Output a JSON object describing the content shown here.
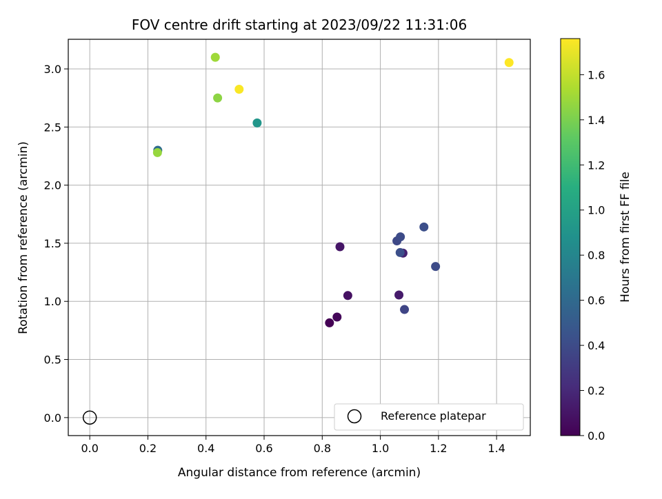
{
  "chart_data": {
    "type": "scatter",
    "title": "FOV centre drift starting at 2023/09/22 11:31:06",
    "xlabel": "Angular distance from reference (arcmin)",
    "ylabel": "Rotation from reference (arcmin)",
    "xlim": [
      -0.074,
      1.516
    ],
    "ylim": [
      -0.155,
      3.255
    ],
    "xticks": [
      0.0,
      0.2,
      0.4,
      0.6,
      0.8,
      1.0,
      1.2,
      1.4
    ],
    "xtick_labels": [
      "0.0",
      "0.2",
      "0.4",
      "0.6",
      "0.8",
      "1.0",
      "1.2",
      "1.4"
    ],
    "yticks": [
      0.0,
      0.5,
      1.0,
      1.5,
      2.0,
      2.5,
      3.0
    ],
    "ytick_labels": [
      "0.0",
      "0.5",
      "1.0",
      "1.5",
      "2.0",
      "2.5",
      "3.0"
    ],
    "grid": true,
    "colormap": "viridis",
    "colorbar": {
      "label": "Hours from first FF file",
      "range": [
        0.0,
        1.76
      ],
      "ticks": [
        0.0,
        0.2,
        0.4,
        0.6,
        0.8,
        1.0,
        1.2,
        1.4,
        1.6
      ],
      "tick_labels": [
        "0.0",
        "0.2",
        "0.4",
        "0.6",
        "0.8",
        "1.0",
        "1.2",
        "1.4",
        "1.6"
      ]
    },
    "points": [
      {
        "x": 0.825,
        "y": 0.815,
        "hours": 0.0
      },
      {
        "x": 0.851,
        "y": 0.865,
        "hours": 0.03
      },
      {
        "x": 0.888,
        "y": 1.05,
        "hours": 0.08
      },
      {
        "x": 0.861,
        "y": 1.47,
        "hours": 0.1
      },
      {
        "x": 1.064,
        "y": 1.055,
        "hours": 0.13
      },
      {
        "x": 1.078,
        "y": 1.415,
        "hours": 0.16
      },
      {
        "x": 1.083,
        "y": 0.93,
        "hours": 0.36
      },
      {
        "x": 1.057,
        "y": 1.52,
        "hours": 0.38
      },
      {
        "x": 1.069,
        "y": 1.555,
        "hours": 0.4
      },
      {
        "x": 1.068,
        "y": 1.42,
        "hours": 0.42
      },
      {
        "x": 1.19,
        "y": 1.3,
        "hours": 0.4
      },
      {
        "x": 1.15,
        "y": 1.64,
        "hours": 0.42
      },
      {
        "x": 0.234,
        "y": 2.3,
        "hours": 0.62
      },
      {
        "x": 0.576,
        "y": 2.535,
        "hours": 0.92
      },
      {
        "x": 0.233,
        "y": 2.28,
        "hours": 1.48
      },
      {
        "x": 0.44,
        "y": 2.75,
        "hours": 1.45
      },
      {
        "x": 0.432,
        "y": 3.1,
        "hours": 1.5
      },
      {
        "x": 0.514,
        "y": 2.825,
        "hours": 1.75
      },
      {
        "x": 1.443,
        "y": 3.055,
        "hours": 1.76
      }
    ],
    "reference": {
      "x": 0.0,
      "y": 0.0,
      "label": "Reference platepar"
    },
    "legend": {
      "position": "lower-right",
      "entries": [
        "Reference platepar"
      ]
    }
  }
}
